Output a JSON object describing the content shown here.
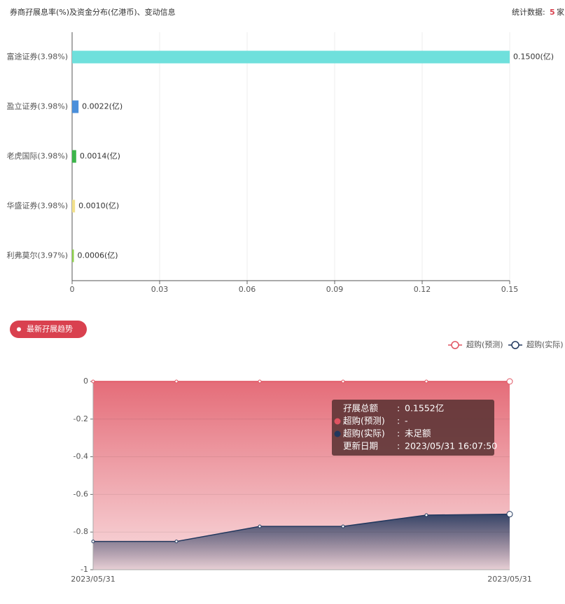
{
  "header": {
    "stats_label": "统计数据:",
    "stats_count": 5,
    "stats_unit": "家"
  },
  "chart_data": [
    {
      "type": "hbar",
      "title": "券商孖展息率(%)及资金分布(亿港币)、变动信息",
      "categories": [
        "富途证券(3.98%)",
        "盈立证券(3.98%)",
        "老虎国际(3.98%)",
        "华盛证券(3.98%)",
        "利弗莫尔(3.97%)"
      ],
      "values": [
        0.15,
        0.0022,
        0.0014,
        0.001,
        0.0006
      ],
      "value_labels": [
        "0.1500(亿)",
        "0.0022(亿)",
        "0.0014(亿)",
        "0.0010(亿)",
        "0.0006(亿)"
      ],
      "colors": [
        "#6fe0dc",
        "#4a8fdb",
        "#3cb54a",
        "#f2e08a",
        "#8fd04c"
      ],
      "xlim": [
        0,
        0.15
      ],
      "xticks": [
        0,
        0.03,
        0.06,
        0.09,
        0.12,
        0.15
      ],
      "grid": true
    },
    {
      "type": "area",
      "title": "最新孖展趋势",
      "categories": [
        "2023/05/31",
        null,
        null,
        null,
        null,
        "2023/05/31"
      ],
      "series": [
        {
          "name": "超购(预测)",
          "color": "#e05361",
          "values": [
            0,
            0,
            0,
            0,
            0,
            0
          ]
        },
        {
          "name": "超购(实际)",
          "color": "#22385e",
          "values": [
            -0.85,
            -0.85,
            -0.77,
            -0.77,
            -0.71,
            -0.705
          ]
        }
      ],
      "ylim": [
        -1,
        0
      ],
      "yticks": [
        -1,
        -0.8,
        -0.6,
        -0.4,
        -0.2,
        0
      ],
      "grid": true,
      "legend": "top-right",
      "tooltip": {
        "separator": ":",
        "total_label": "孖展总额",
        "total_value": "0.1552亿",
        "predicted_value": "-",
        "actual_value": "未足额",
        "date_label": "更新日期",
        "date_value": "2023/05/31 16:07:50"
      }
    }
  ]
}
